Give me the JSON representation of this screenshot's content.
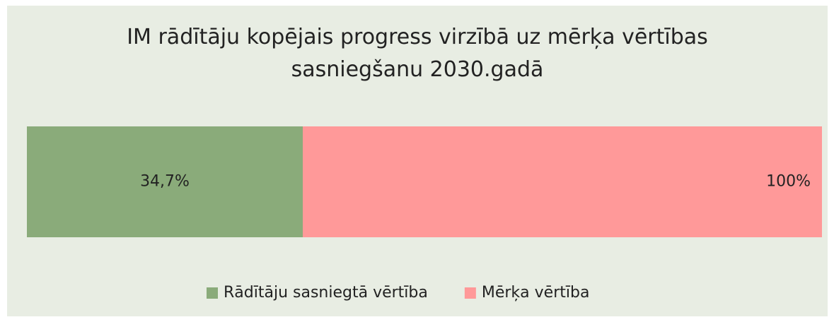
{
  "chart_data": {
    "type": "bar",
    "orientation": "horizontal",
    "overlap": true,
    "title": "IM rādītāju kopējais progress virzībā uz mērķa vērtības sasniegšanu 2030.gadā",
    "categories": [
      null
    ],
    "series": [
      {
        "name": "Rādītāju sasniegtā vērtība",
        "color": "#8aab7a",
        "values": [
          34.7
        ],
        "value_labels": [
          "34,7%"
        ]
      },
      {
        "name": "Mērķa vērtība",
        "color": "#ff9999",
        "values": [
          100
        ],
        "value_labels": [
          "100%"
        ]
      }
    ],
    "xlim": [
      0,
      100
    ],
    "legend": "bottom"
  }
}
